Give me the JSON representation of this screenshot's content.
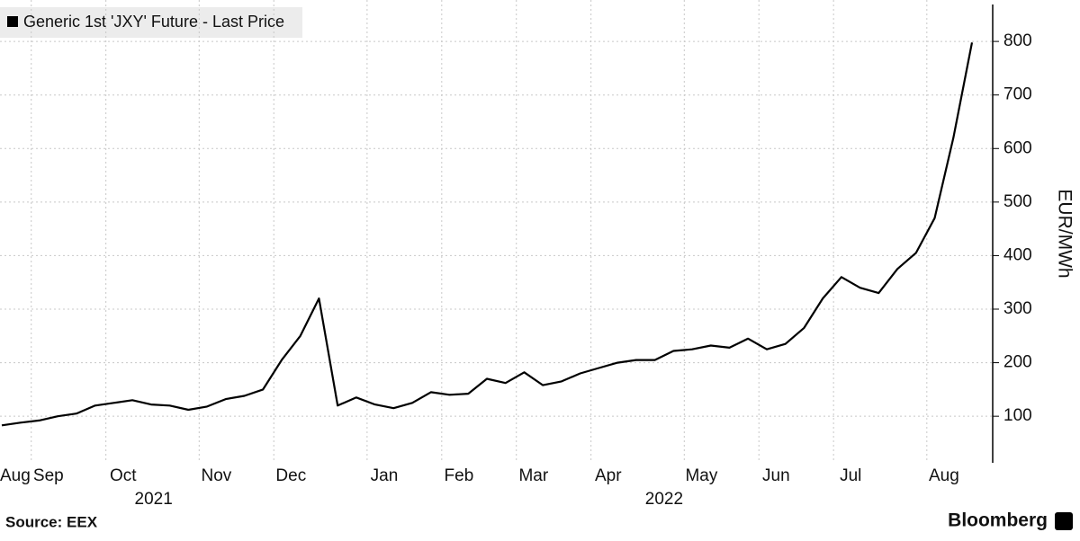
{
  "chart_data": {
    "type": "line",
    "y_label": "EUR/MWh",
    "source": "Source: EEX",
    "brand": "Bloomberg",
    "categories": [
      "Aug",
      "Sep",
      null,
      null,
      null,
      "Oct",
      null,
      null,
      null,
      null,
      "Nov",
      null,
      null,
      null,
      "Dec",
      null,
      null,
      null,
      null,
      "Jan",
      null,
      null,
      null,
      "Feb",
      null,
      null,
      null,
      "Mar",
      null,
      null,
      null,
      "Apr",
      null,
      null,
      null,
      null,
      "May",
      null,
      null,
      null,
      "Jun",
      null,
      null,
      null,
      "Jul",
      null,
      null,
      null,
      null,
      "Aug",
      null,
      null,
      null
    ],
    "year_labels": [
      "2021",
      "2022"
    ],
    "series": [
      {
        "name": "Generic 1st 'JXY' Future - Last Price",
        "color": "#000000",
        "values": [
          83,
          88,
          92,
          100,
          105,
          120,
          125,
          130,
          122,
          120,
          112,
          118,
          132,
          138,
          150,
          205,
          250,
          320,
          120,
          135,
          122,
          115,
          125,
          145,
          140,
          142,
          170,
          162,
          182,
          158,
          165,
          180,
          190,
          200,
          205,
          205,
          222,
          225,
          232,
          228,
          245,
          225,
          235,
          265,
          320,
          360,
          340,
          330,
          375,
          405,
          470,
          620,
          798
        ]
      }
    ],
    "ylim": [
      13,
      869
    ],
    "yticks": [
      100,
      200,
      300,
      400,
      500,
      600,
      700,
      800
    ],
    "grid": true
  }
}
